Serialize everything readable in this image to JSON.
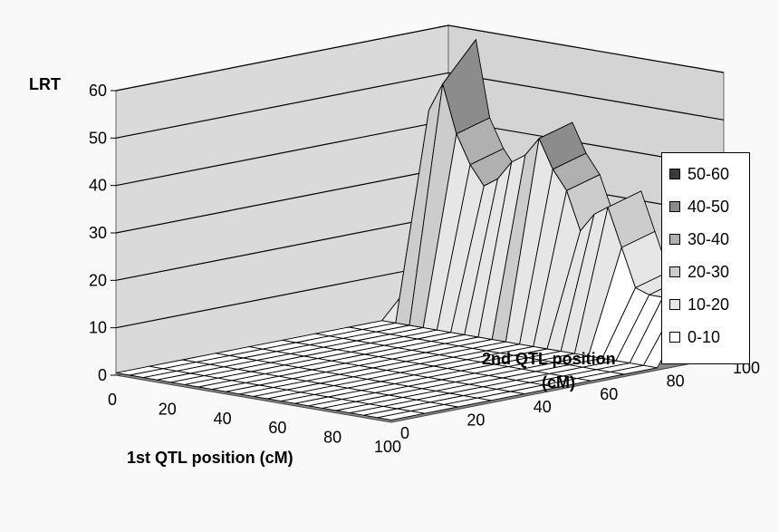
{
  "chart_data": {
    "type": "surface",
    "zlabel": "LRT",
    "xlabel": "1st QTL position (cM)",
    "ylabel_line1": "2nd QTL position",
    "ylabel_line2": "(cM)",
    "zlim": [
      0,
      60
    ],
    "z_ticks": [
      "0",
      "10",
      "20",
      "30",
      "40",
      "50",
      "60"
    ],
    "x_ticks": [
      "0",
      "20",
      "40",
      "60",
      "80",
      "100"
    ],
    "y_ticks": [
      "0",
      "20",
      "40",
      "60",
      "80",
      "100"
    ],
    "grid": true,
    "legend_position": "right",
    "legend": [
      {
        "label": "50-60",
        "color": "#3a3a3a"
      },
      {
        "label": "40-50",
        "color": "#8c8c8c"
      },
      {
        "label": "30-40",
        "color": "#b0b0b0"
      },
      {
        "label": "20-30",
        "color": "#cccccc"
      },
      {
        "label": "10-20",
        "color": "#e6e6e6"
      },
      {
        "label": "0-10",
        "color": "#ffffff"
      }
    ],
    "surface_x": [
      0,
      5,
      10,
      15,
      20,
      25,
      30,
      35,
      40,
      45,
      50,
      55,
      60,
      65,
      70,
      75,
      80,
      85,
      90,
      95,
      100
    ],
    "surface_y": [
      0,
      10,
      20,
      30,
      40,
      50,
      60,
      70,
      80,
      90,
      100
    ],
    "surface_z_at_y100": [
      8,
      48,
      58,
      42,
      36,
      32,
      34,
      38,
      40,
      44,
      38,
      34,
      26,
      30,
      32,
      24,
      16,
      15,
      15,
      14,
      14
    ],
    "surface_z_at_y90": [
      8,
      44,
      50,
      40,
      34,
      30,
      32,
      36,
      38,
      42,
      36,
      32,
      24,
      28,
      30,
      22,
      14,
      13,
      13,
      12,
      12
    ],
    "surface_z_below_y80": 0.5
  }
}
